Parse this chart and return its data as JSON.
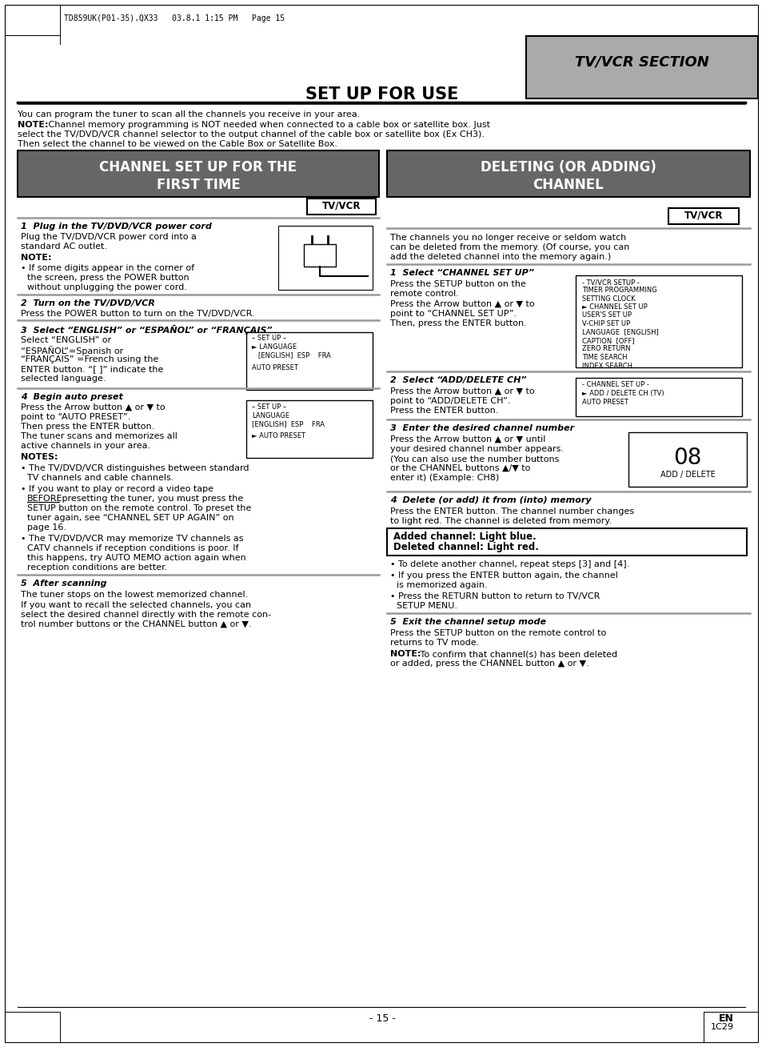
{
  "page_header": "TD859UK(P01-35).QX33   03.8.1 1:15 PM   Page 15",
  "section_label": "TV/VCR SECTION",
  "page_title": "SET UP FOR USE",
  "intro_line1": "You can program the tuner to scan all the channels you receive in your area.",
  "intro_note_text2": "select the TV/DVD/VCR channel selector to the output channel of the cable box or satellite box (Ex CH3).",
  "intro_note_text3": "Then select the channel to be viewed on the Cable Box or Satellite Box.",
  "left_header": "CHANNEL SET UP FOR THE\nFIRST TIME",
  "right_header": "DELETING (OR ADDING)\nCHANNEL",
  "tv_vcr_label": "TV/VCR",
  "menu1_title": "- TV/VCR SETUP -",
  "menu1_items": [
    "TIMER PROGRAMMING",
    "SETTING CLOCK",
    "► CHANNEL SET UP",
    "USER'S SET UP",
    "V-CHIP SET UP",
    "LANGUAGE  [ENGLISH]",
    "CAPTION  [OFF]",
    "ZERO RETURN",
    "TIME SEARCH",
    "INDEX SEARCH"
  ],
  "menu2_title": "- CHANNEL SET UP -",
  "menu2_items": [
    "► ADD / DELETE CH (TV)",
    "AUTO PRESET"
  ],
  "menu3_number": "08",
  "menu3_label": "ADD / DELETE",
  "highlight_box_line1": "Added channel: Light blue.",
  "highlight_box_line2": "Deleted channel: Light red.",
  "page_number": "- 15 -",
  "page_en": "EN",
  "page_code": "1C29",
  "bg_color": "#ffffff",
  "dark_gray": "#666666",
  "mid_gray": "#888888",
  "light_gray": "#aaaaaa"
}
